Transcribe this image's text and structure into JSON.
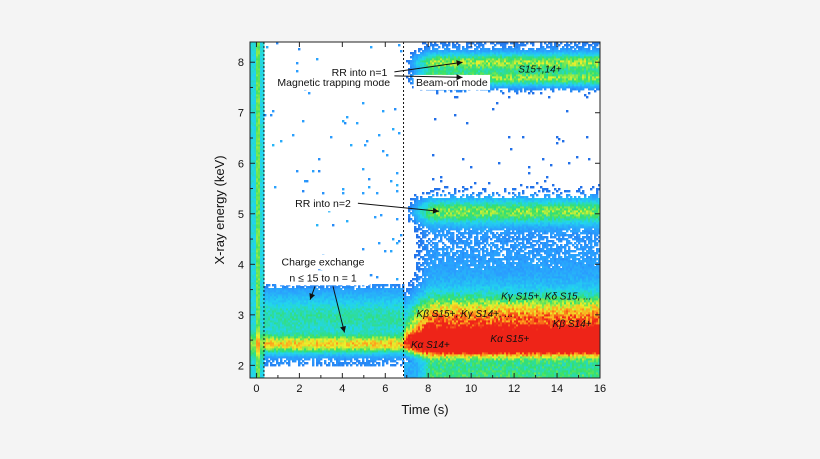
{
  "chart_data": {
    "type": "heatmap",
    "title": "",
    "xlabel": "Time (s)",
    "ylabel": "X-ray energy (keV)",
    "xlim": [
      -0.3,
      16
    ],
    "ylim": [
      1.75,
      8.4
    ],
    "x_ticks": [
      0,
      2,
      4,
      6,
      8,
      10,
      12,
      14,
      16
    ],
    "y_ticks": [
      2,
      3,
      4,
      5,
      6,
      7,
      8
    ],
    "x_tick_labels": [
      "0",
      "2",
      "4",
      "6",
      "8",
      "10",
      "12",
      "14",
      "16"
    ],
    "y_tick_labels": [
      "2",
      "3",
      "4",
      "5",
      "6",
      "7",
      "8"
    ],
    "mode_boundaries_s": [
      0.35,
      6.85
    ],
    "mode_labels": [
      {
        "text": "Magnetic trapping mode",
        "x": 3.6,
        "y": 7.55
      },
      {
        "text": "Beam-on mode",
        "x": 9.1,
        "y": 7.55
      }
    ],
    "annotations": [
      {
        "id": "rr1",
        "text": "RR into n=1",
        "x": 4.8,
        "y": 7.75,
        "targets": [
          [
            9.6,
            8.0
          ],
          [
            9.6,
            7.7
          ]
        ]
      },
      {
        "id": "rr2",
        "text": "RR into n=2",
        "x": 3.1,
        "y": 5.15,
        "targets": [
          [
            8.5,
            5.05
          ]
        ]
      },
      {
        "id": "cx",
        "text": "Charge exchange",
        "lines": [
          "Charge exchange",
          "n ≤ 15 to n = 1"
        ],
        "x": 3.1,
        "y": 4.0,
        "targets": [
          [
            2.5,
            3.3
          ],
          [
            4.1,
            2.65
          ]
        ]
      }
    ],
    "band_labels": [
      {
        "text": "S15+,14+",
        "x": 13.2,
        "y": 7.8
      },
      {
        "text": "Kγ S15+, Kδ S15, ...",
        "x": 13.5,
        "y": 3.3
      },
      {
        "text": "Kβ S15+, Kγ S14+, ...",
        "x": 9.7,
        "y": 2.96
      },
      {
        "text": "Kβ S14+",
        "x": 14.7,
        "y": 2.76
      },
      {
        "text": "Kα S15+",
        "x": 11.8,
        "y": 2.46
      },
      {
        "text": "Kα S14+",
        "x": 8.1,
        "y": 2.34
      }
    ],
    "series": [
      {
        "id": "kalpha",
        "energy_keV": 2.42,
        "intensity_trapping": 0.55,
        "intensity_beam_on": 1.0
      },
      {
        "id": "kbeta",
        "energy_keV": 2.95,
        "intensity_trapping": 0.3,
        "intensity_beam_on": 0.55
      },
      {
        "id": "rr2",
        "energy_keV": 5.05,
        "intensity_trapping": 0.0,
        "intensity_beam_on": 0.45
      },
      {
        "id": "rr1",
        "energy_keV": 7.9,
        "intensity_trapping": 0.0,
        "intensity_beam_on": 0.5
      }
    ],
    "colormap": [
      "#1c4fd8",
      "#2a9cff",
      "#22d6ee",
      "#35e06a",
      "#e8f22d",
      "#ffa01c",
      "#ee2418"
    ],
    "plot_background": "#ffffff"
  }
}
